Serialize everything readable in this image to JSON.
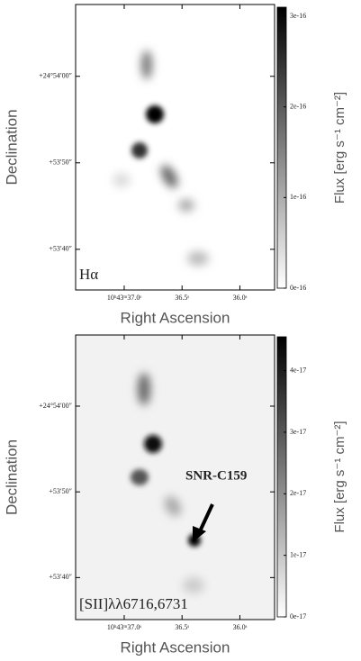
{
  "chart_data": [
    {
      "type": "image",
      "panel_label": "Hα",
      "xlabel": "Right Ascension",
      "ylabel": "Declination",
      "xlim": [
        37.42,
        35.7
      ],
      "xticks": [
        {
          "value": 37.0,
          "label": "10ʰ43ᵐ37.0ˢ"
        },
        {
          "value": 36.5,
          "label": "36.5ˢ"
        },
        {
          "value": 36.0,
          "label": "36.0ˢ"
        }
      ],
      "ylim": [
        35.3,
        68.3
      ],
      "yticks": [
        {
          "value": 60,
          "label": "+24°54′00″"
        },
        {
          "value": 50,
          "label": "+53′50″"
        },
        {
          "value": 40,
          "label": "+53′40″"
        }
      ],
      "colorbar": {
        "label": "Flux [erg s⁻¹ cm⁻²]",
        "lim": [
          0,
          3.1e-16
        ],
        "ticks": [
          {
            "value": 0,
            "label": "0e-16"
          },
          {
            "value": 1e-16,
            "label": "1e-16"
          },
          {
            "value": 2e-16,
            "label": "2e-16"
          },
          {
            "value": 3e-16,
            "label": "3e-16"
          }
        ]
      }
    },
    {
      "type": "image",
      "panel_label": "[SII]λλ6716,6731",
      "annotation": "SNR-C159",
      "xlabel": "Right Ascension",
      "ylabel": "Declination",
      "xlim": [
        37.42,
        35.7
      ],
      "xticks": [
        {
          "value": 37.0,
          "label": "10ʰ43ᵐ37.0ˢ"
        },
        {
          "value": 36.5,
          "label": "36.5ˢ"
        },
        {
          "value": 36.0,
          "label": "36.0ˢ"
        }
      ],
      "ylim": [
        35.1,
        68.3
      ],
      "yticks": [
        {
          "value": 60,
          "label": "+24°54′00″"
        },
        {
          "value": 50,
          "label": "+53′50″"
        },
        {
          "value": 40,
          "label": "+53′40″"
        }
      ],
      "colorbar": {
        "label": "Flux [erg s⁻¹ cm⁻²]",
        "lim": [
          0,
          4.55e-17
        ],
        "ticks": [
          {
            "value": 0,
            "label": "0e-17"
          },
          {
            "value": 1e-17,
            "label": "1e-17"
          },
          {
            "value": 2e-17,
            "label": "2e-17"
          },
          {
            "value": 3e-17,
            "label": "3e-17"
          },
          {
            "value": 4e-17,
            "label": "4e-17"
          }
        ]
      }
    }
  ]
}
